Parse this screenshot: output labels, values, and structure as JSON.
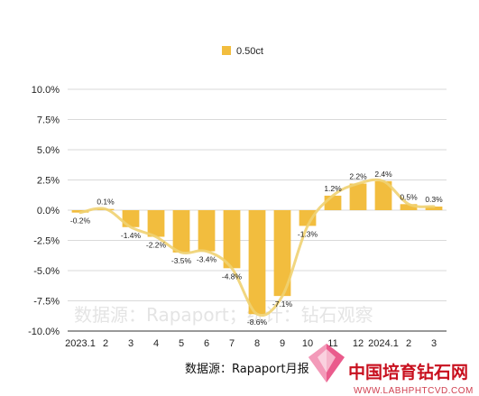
{
  "chart_data": {
    "type": "bar",
    "categories": [
      "2023.1",
      "2",
      "3",
      "4",
      "5",
      "6",
      "7",
      "8",
      "9",
      "10",
      "11",
      "12",
      "2024.1",
      "2",
      "3"
    ],
    "series": [
      {
        "name": "0.50ct",
        "values": [
          -0.2,
          0.1,
          -1.4,
          -2.2,
          -3.5,
          -3.4,
          -4.8,
          -8.6,
          -7.1,
          -1.3,
          1.2,
          2.2,
          2.4,
          0.5,
          0.3
        ],
        "labels": [
          "-0.2%",
          "0.1%",
          "-1.4%",
          "-2.2%",
          "-3.5%",
          "-3.4%",
          "-4.8%",
          "-8.6%",
          "-7.1%",
          "-1.3%",
          "1.2%",
          "2.2%",
          "2.4%",
          "0.5%",
          "0.3%"
        ]
      }
    ],
    "yticks": [
      10,
      7.5,
      5,
      2.5,
      0,
      -2.5,
      -5,
      -7.5,
      -10
    ],
    "ytick_labels": [
      "10.0%",
      "7.5%",
      "5.0%",
      "2.5%",
      "0.0%",
      "-2.5%",
      "-5.0%",
      "-7.5%",
      "-10.0%"
    ],
    "ylim": [
      -10,
      10
    ],
    "grid": true,
    "legend": "top-center",
    "trendline": true,
    "colors": {
      "bar": "#f2bd3e",
      "trend": "#f0d272",
      "grid": "#d9d9d9"
    }
  },
  "source": "数据源：Rapaport月报",
  "watermark": "数据源：Rapaport；统计：钻石观察",
  "logo": {
    "name": "中国培育钻石网",
    "url": "WWW.LABHPHTCVD.COM"
  }
}
